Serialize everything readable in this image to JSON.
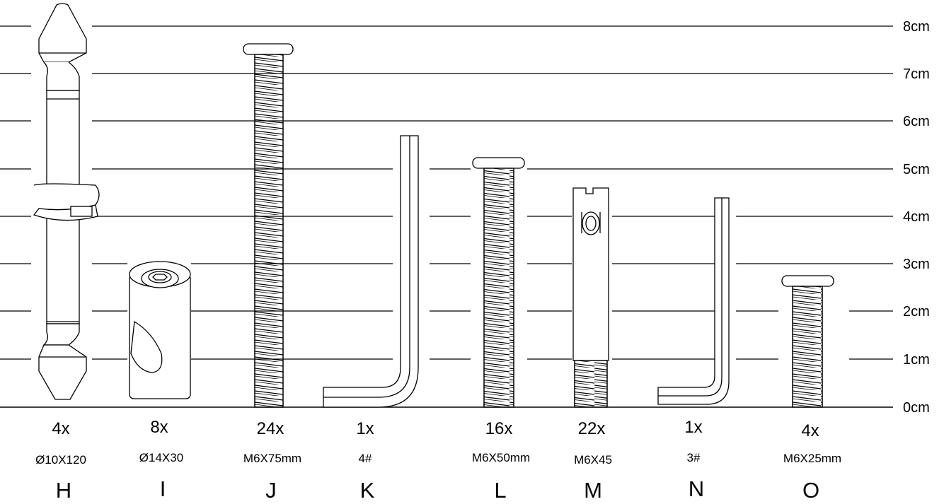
{
  "scale": {
    "unit_labels": [
      "0cm",
      "1cm",
      "2cm",
      "3cm",
      "4cm",
      "5cm",
      "6cm",
      "7cm",
      "8cm"
    ]
  },
  "parts": [
    {
      "letter": "H",
      "quantity": "4x",
      "spec": "Ø10X120",
      "icon": "dowel-with-cam-clip"
    },
    {
      "letter": "I",
      "quantity": "8x",
      "spec": "Ø14X30",
      "icon": "barrel-nut"
    },
    {
      "letter": "J",
      "quantity": "24x",
      "spec": "M6X75mm",
      "icon": "bolt"
    },
    {
      "letter": "K",
      "quantity": "1x",
      "spec": "4#",
      "icon": "allen-key"
    },
    {
      "letter": "L",
      "quantity": "16x",
      "spec": "M6X50mm",
      "icon": "bolt"
    },
    {
      "letter": "M",
      "quantity": "22x",
      "spec": "M6X45",
      "icon": "connector-bolt"
    },
    {
      "letter": "N",
      "quantity": "1x",
      "spec": "3#",
      "icon": "allen-key"
    },
    {
      "letter": "O",
      "quantity": "4x",
      "spec": "M6X25mm",
      "icon": "bolt"
    }
  ]
}
